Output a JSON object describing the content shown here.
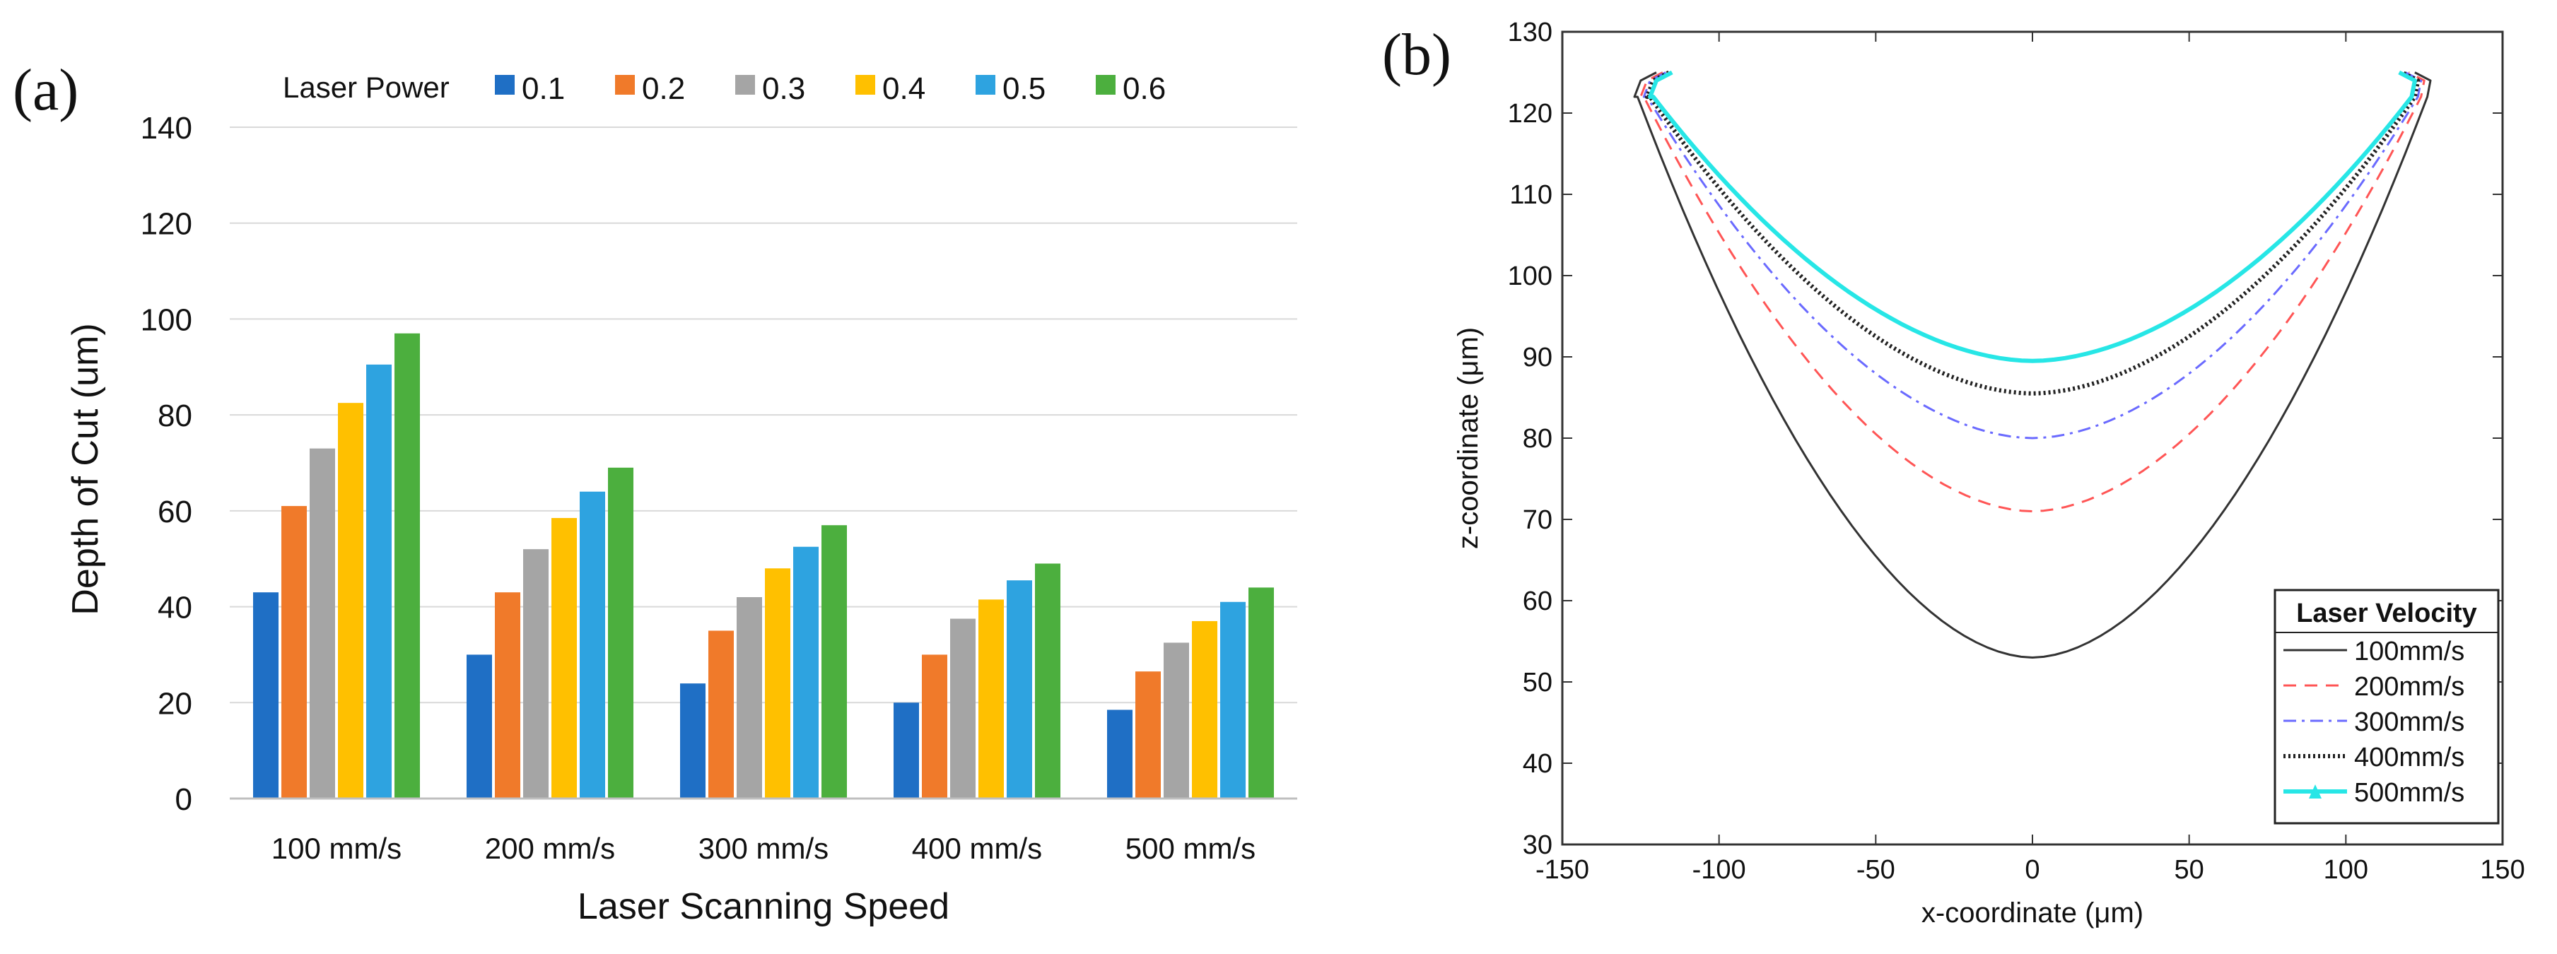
{
  "chart_data": [
    {
      "type": "bar",
      "panel_label": "(a)",
      "title": "",
      "xlabel": "Laser Scanning Speed",
      "ylabel": "Depth of Cut (um)",
      "ylim": [
        0,
        140
      ],
      "yticks": [
        0,
        20,
        40,
        60,
        80,
        100,
        120,
        140
      ],
      "grid": true,
      "legend_title": "Laser Power",
      "legend_position": "top",
      "categories": [
        "100 mm/s",
        "200 mm/s",
        "300 mm/s",
        "400 mm/s",
        "500 mm/s"
      ],
      "series": [
        {
          "name": "0.1",
          "color": "#1f6fc5",
          "values": [
            43,
            30,
            24,
            20,
            18.5
          ]
        },
        {
          "name": "0.2",
          "color": "#f07a2a",
          "values": [
            61,
            43,
            35,
            30,
            26.5
          ]
        },
        {
          "name": "0.3",
          "color": "#a5a5a5",
          "values": [
            73,
            52,
            42,
            37.5,
            32.5
          ]
        },
        {
          "name": "0.4",
          "color": "#ffc000",
          "values": [
            82.5,
            58.5,
            48,
            41.5,
            37
          ]
        },
        {
          "name": "0.5",
          "color": "#2ea3e0",
          "values": [
            90.5,
            64,
            52.5,
            45.5,
            41
          ]
        },
        {
          "name": "0.6",
          "color": "#4caf3e",
          "values": [
            97,
            69,
            57,
            49,
            44
          ]
        }
      ]
    },
    {
      "type": "line",
      "panel_label": "(b)",
      "title": "",
      "xlabel": "x-coordinate (μm)",
      "ylabel": "z-coordinate (μm)",
      "xlim": [
        -150,
        150
      ],
      "ylim": [
        30,
        130
      ],
      "xticks": [
        -150,
        -100,
        -50,
        0,
        50,
        100,
        150
      ],
      "yticks": [
        30,
        40,
        50,
        60,
        70,
        80,
        90,
        100,
        110,
        120,
        130
      ],
      "grid": false,
      "legend_title": "Laser Velocity",
      "legend_position": "bottom-right",
      "series": [
        {
          "name": "100mm/s",
          "color": "#333333",
          "style": "solid",
          "width": 126,
          "bottom": 53,
          "top": 122
        },
        {
          "name": "200mm/s",
          "color": "#ff5555",
          "style": "dashed",
          "width": 124,
          "bottom": 71,
          "top": 122
        },
        {
          "name": "300mm/s",
          "color": "#6a6aff",
          "style": "dashdot",
          "width": 123,
          "bottom": 80,
          "top": 122
        },
        {
          "name": "400mm/s",
          "color": "#222222",
          "style": "dotted",
          "width": 122,
          "bottom": 85.5,
          "top": 122
        },
        {
          "name": "500mm/s",
          "color": "#27e6e6",
          "style": "marker",
          "width": 121,
          "bottom": 89.5,
          "top": 122
        }
      ]
    }
  ]
}
